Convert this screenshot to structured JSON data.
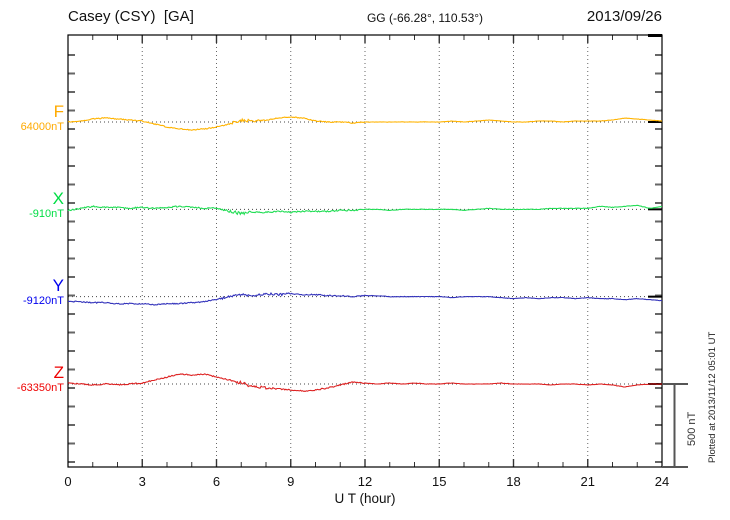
{
  "header": {
    "station": "Casey (CSY)  [GA]",
    "coordinates": "GG (-66.28°, 110.53°)",
    "date": "2013/09/26"
  },
  "footer": {
    "plotted_at": "Plotted at 2013/11/12 05:01 UT"
  },
  "chart_data": {
    "type": "line",
    "title": "Casey (CSY) [GA] magnetogram for 2013/09/26",
    "xlabel": "U T (hour)",
    "unit": "nT",
    "x_range": [
      0,
      24
    ],
    "x_major_ticks": [
      0,
      3,
      6,
      9,
      12,
      15,
      18,
      21,
      24
    ],
    "x_minor_tick_step_h": 1,
    "grid": "dotted-vertical-every-3h",
    "scale_bar": {
      "label": "500 nT",
      "nT": 500
    },
    "x_step_h": 0.5,
    "series": [
      {
        "name": "F",
        "baseline_label": "64000nT",
        "baseline_nT": 64000,
        "color": "#FFB300",
        "label_color": "#FFAA00",
        "deviation_nT": [
          0,
          6,
          18,
          24,
          18,
          12,
          6,
          -12,
          -30,
          -42,
          -48,
          -42,
          -30,
          -12,
          12,
          6,
          12,
          24,
          30,
          24,
          6,
          0,
          0,
          -6,
          0,
          0,
          0,
          0,
          0,
          0,
          0,
          6,
          0,
          6,
          12,
          6,
          0,
          0,
          6,
          6,
          0,
          6,
          6,
          6,
          12,
          24,
          18,
          12,
          6
        ],
        "noise": [
          {
            "from": 0,
            "to": 12,
            "amp": 3
          },
          {
            "from": 12,
            "to": 24,
            "amp": 1.2
          },
          {
            "from": 6.6,
            "to": 7.8,
            "amp": 10
          }
        ]
      },
      {
        "name": "X",
        "baseline_label": "-910nT",
        "baseline_nT": -910,
        "color": "#22DD55",
        "label_color": "#00DD44",
        "deviation_nT": [
          -6,
          6,
          18,
          12,
          12,
          6,
          12,
          6,
          12,
          18,
          12,
          6,
          6,
          -12,
          -24,
          -18,
          -18,
          -12,
          -18,
          -12,
          -12,
          -12,
          -6,
          -6,
          0,
          0,
          -6,
          0,
          0,
          0,
          0,
          0,
          -6,
          0,
          6,
          0,
          0,
          0,
          0,
          6,
          6,
          6,
          6,
          18,
          12,
          18,
          24,
          6,
          18
        ],
        "noise": [
          {
            "from": 0,
            "to": 12,
            "amp": 4
          },
          {
            "from": 12,
            "to": 24,
            "amp": 1.4
          },
          {
            "from": 6.4,
            "to": 7.4,
            "amp": 10
          }
        ]
      },
      {
        "name": "Y",
        "baseline_label": "-9120nT",
        "baseline_nT": -9120,
        "color": "#3333BB",
        "label_color": "#0000EE",
        "deviation_nT": [
          -30,
          -30,
          -36,
          -36,
          -42,
          -42,
          -42,
          -48,
          -42,
          -42,
          -36,
          -30,
          -18,
          0,
          12,
          6,
          18,
          12,
          18,
          12,
          12,
          6,
          6,
          0,
          6,
          6,
          0,
          0,
          0,
          0,
          0,
          -6,
          0,
          0,
          0,
          -6,
          -12,
          -6,
          -12,
          -6,
          -6,
          -12,
          -6,
          -12,
          -12,
          -18,
          -12,
          -18,
          -24
        ],
        "noise": [
          {
            "from": 0,
            "to": 12,
            "amp": 3.5
          },
          {
            "from": 12,
            "to": 24,
            "amp": 1.4
          },
          {
            "from": 6.0,
            "to": 9.0,
            "amp": 7
          }
        ]
      },
      {
        "name": "Z",
        "baseline_label": "-63350nT",
        "baseline_nT": -63350,
        "color": "#DD2222",
        "label_color": "#EE0000",
        "deviation_nT": [
          6,
          0,
          -6,
          0,
          -6,
          0,
          6,
          24,
          42,
          60,
          54,
          60,
          42,
          24,
          6,
          -18,
          -24,
          -30,
          -36,
          -42,
          -36,
          -24,
          -6,
          12,
          6,
          0,
          6,
          0,
          6,
          0,
          0,
          6,
          0,
          0,
          0,
          6,
          0,
          0,
          0,
          -6,
          0,
          0,
          -6,
          0,
          -6,
          -18,
          -6,
          0,
          0
        ],
        "noise": [
          {
            "from": 0,
            "to": 12,
            "amp": 3.5
          },
          {
            "from": 12,
            "to": 24,
            "amp": 1.3
          },
          {
            "from": 6.8,
            "to": 8.3,
            "amp": 9
          }
        ]
      }
    ]
  }
}
